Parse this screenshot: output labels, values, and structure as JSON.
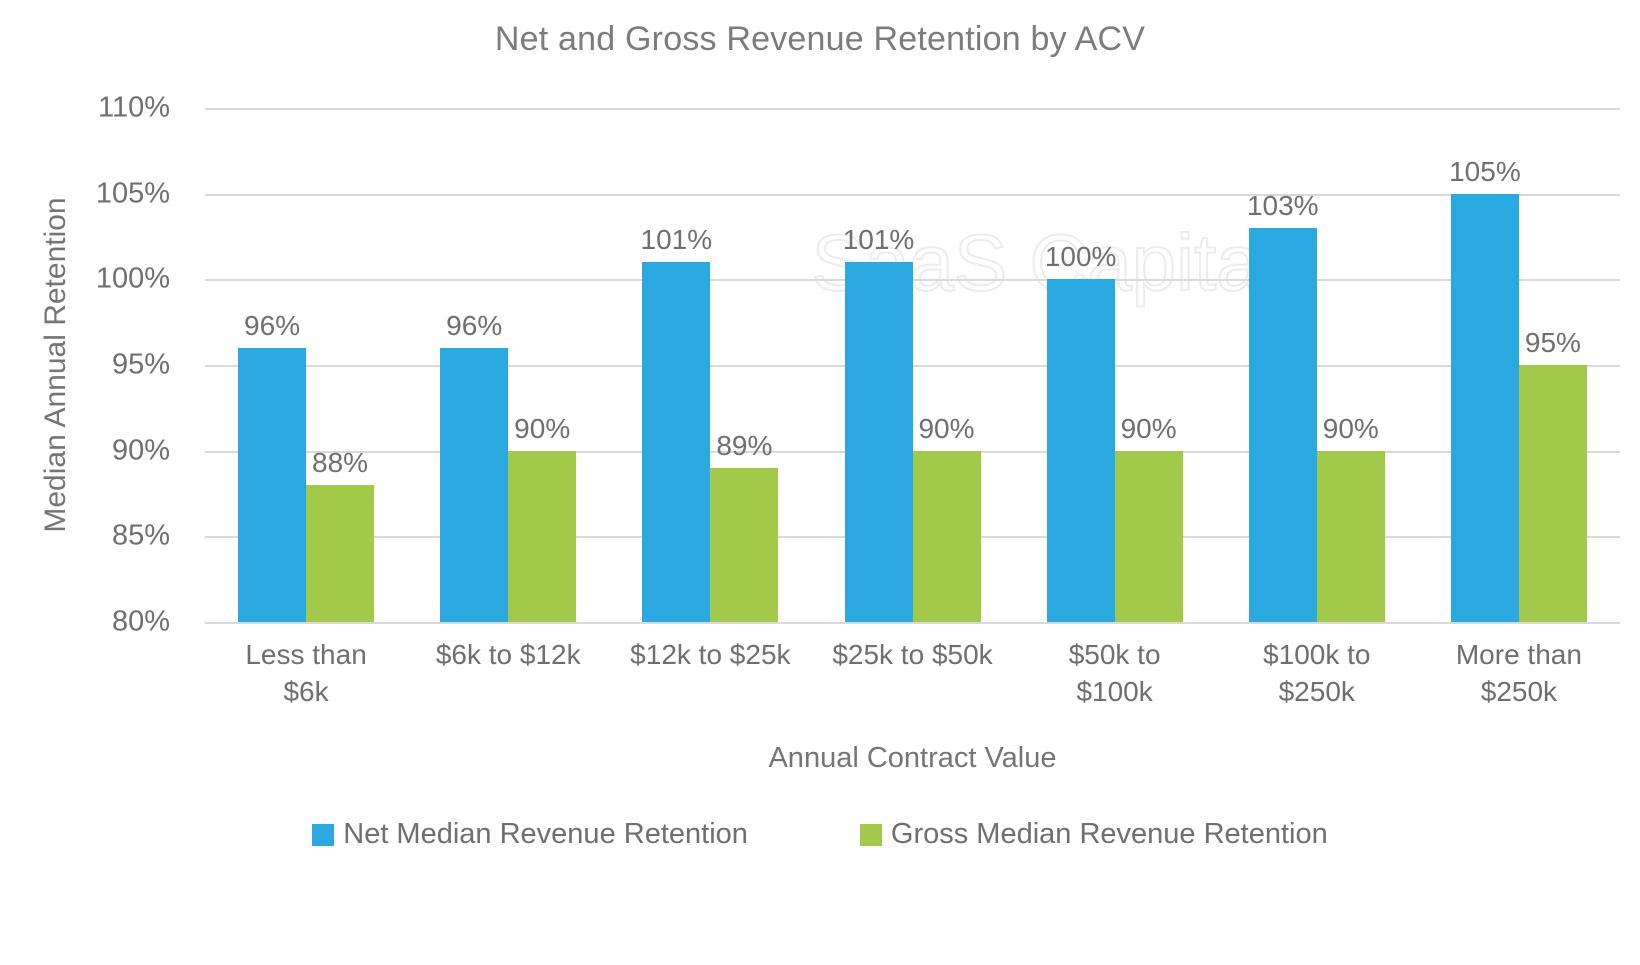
{
  "title": "Net and Gross Revenue Retention by ACV",
  "watermark": "SaaS Capital",
  "chart_data": {
    "type": "bar",
    "title": "Net and Gross Revenue Retention by ACV",
    "xlabel": "Annual Contract Value",
    "ylabel": "Median Annual Retention",
    "categories": [
      "Less than $6k",
      "$6k to $12k",
      "$12k to $25k",
      "$25k to $50k",
      "$50k to $100k",
      "$100k to $250k",
      "More than $250k"
    ],
    "series": [
      {
        "name": "Net Median Revenue Retention",
        "color": "#29A9DF",
        "values": [
          96,
          96,
          101,
          101,
          100,
          103,
          105
        ],
        "labels": [
          "96%",
          "96%",
          "101%",
          "101%",
          "100%",
          "103%",
          "105%"
        ]
      },
      {
        "name": "Gross Median Revenue Retention",
        "color": "#A3C94A",
        "values": [
          88,
          90,
          89,
          90,
          90,
          90,
          95
        ],
        "labels": [
          "88%",
          "90%",
          "89%",
          "90%",
          "90%",
          "90%",
          "95%"
        ]
      }
    ],
    "y_ticks": [
      "110%",
      "105%",
      "100%",
      "95%",
      "90%",
      "85%",
      "80%"
    ],
    "ylim": [
      80,
      110
    ],
    "grid": true,
    "legend_position": "bottom",
    "colors": {
      "grid": "#D9D9D9",
      "text": "#6F6F6F",
      "watermark_outline": "#ECECEC"
    }
  }
}
